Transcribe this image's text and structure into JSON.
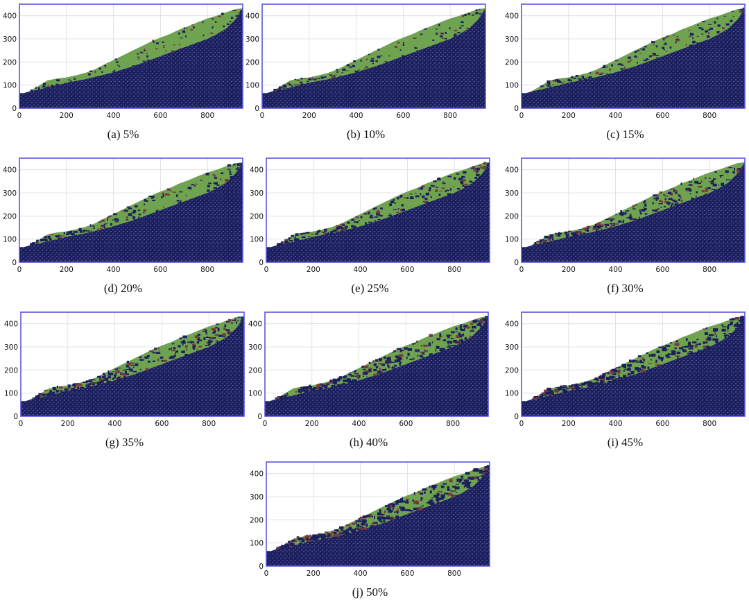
{
  "figure": {
    "x_ticks": [
      "0",
      "200",
      "400",
      "600",
      "800"
    ],
    "y_ticks": [
      "0",
      "100",
      "200",
      "300",
      "400"
    ],
    "colors": {
      "soil": "#1c1f5e",
      "mantle": "#6fa34f",
      "weak_zone": "#7a3b3b",
      "frame": "#5a55e0",
      "grid": "#dcdcdc"
    },
    "panels": [
      {
        "caption": "(a) 5%",
        "fraction": 0.05
      },
      {
        "caption": "(b) 10%",
        "fraction": 0.1
      },
      {
        "caption": "(c) 15%",
        "fraction": 0.15
      },
      {
        "caption": "(d) 20%",
        "fraction": 0.2
      },
      {
        "caption": "(e) 25%",
        "fraction": 0.25
      },
      {
        "caption": "(f) 30%",
        "fraction": 0.3
      },
      {
        "caption": "(g) 35%",
        "fraction": 0.35
      },
      {
        "caption": "(h) 40%",
        "fraction": 0.4
      },
      {
        "caption": "(i) 45%",
        "fraction": 0.45
      },
      {
        "caption": "(j) 50%",
        "fraction": 0.5
      }
    ]
  },
  "chart_data": {
    "type": "area",
    "xlim": [
      0,
      950
    ],
    "ylim": [
      0,
      450
    ],
    "x_ticks": [
      0,
      200,
      400,
      600,
      800
    ],
    "y_ticks": [
      0,
      100,
      200,
      300,
      400
    ],
    "grid": true,
    "series": [
      {
        "x": [
          0,
          20,
          40,
          80,
          120,
          160,
          200,
          240,
          280,
          320,
          360,
          400,
          440,
          480,
          520,
          560,
          600,
          640,
          680,
          720,
          760,
          800,
          840,
          880,
          920,
          950
        ],
        "values": [
          65,
          65,
          72,
          95,
          120,
          128,
          133,
          142,
          152,
          167,
          188,
          208,
          228,
          248,
          268,
          288,
          305,
          320,
          340,
          355,
          372,
          388,
          400,
          415,
          428,
          432
        ]
      },
      {
        "x": [
          0,
          20,
          40,
          80,
          120,
          160,
          200,
          240,
          280,
          320,
          360,
          400,
          440,
          480,
          520,
          560,
          600,
          640,
          680,
          720,
          760,
          800,
          840,
          880,
          920,
          950
        ],
        "values": [
          65,
          65,
          72,
          80,
          90,
          100,
          110,
          118,
          125,
          135,
          145,
          155,
          168,
          180,
          195,
          210,
          225,
          240,
          255,
          270,
          285,
          300,
          320,
          345,
          385,
          432
        ]
      }
    ]
  }
}
